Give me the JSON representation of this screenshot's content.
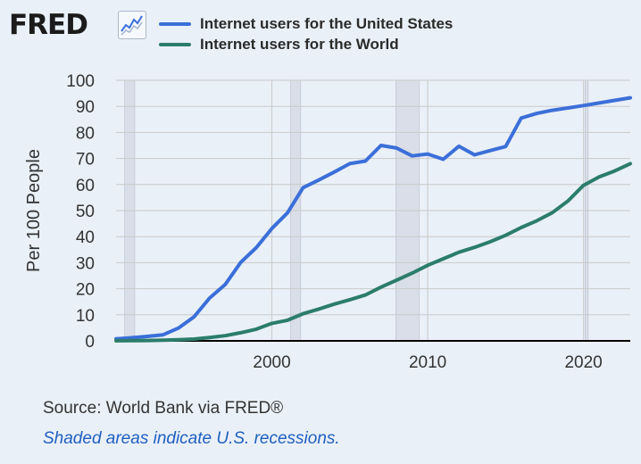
{
  "header": {
    "logo_text": "FRED",
    "logo_icon": "line-chart-icon"
  },
  "colors": {
    "us": "#3b6fd9",
    "world": "#2b7d6b",
    "recession": "#d9dee8",
    "grid": "#c9c9c9",
    "axis": "#000000"
  },
  "chart_data": {
    "type": "line",
    "title": "",
    "xlabel": "",
    "ylabel": "Per 100 People",
    "xlim": [
      1990,
      2023
    ],
    "ylim": [
      0,
      100
    ],
    "yticks": [
      0,
      10,
      20,
      30,
      40,
      50,
      60,
      70,
      80,
      90,
      100
    ],
    "xticks": [
      2000,
      2010,
      2020
    ],
    "recessions": [
      [
        1990.55,
        1991.2
      ],
      [
        2001.2,
        2001.85
      ],
      [
        2007.95,
        2009.45
      ],
      [
        2020.1,
        2020.3
      ]
    ],
    "legend_position": "top",
    "series": [
      {
        "name": "Internet users for the United States",
        "color": "#3b6fd9",
        "x": [
          1990,
          1991,
          1992,
          1993,
          1994,
          1995,
          1996,
          1997,
          1998,
          1999,
          2000,
          2001,
          2002,
          2003,
          2004,
          2005,
          2006,
          2007,
          2008,
          2009,
          2010,
          2011,
          2012,
          2013,
          2014,
          2015,
          2016,
          2017,
          2018,
          2019,
          2020,
          2021,
          2022,
          2023
        ],
        "values": [
          0.8,
          1.2,
          1.7,
          2.3,
          4.9,
          9.2,
          16.4,
          21.6,
          30.1,
          35.8,
          43.1,
          49.1,
          58.8,
          61.7,
          64.8,
          68.0,
          69.0,
          75.0,
          74.0,
          71.0,
          71.7,
          69.7,
          74.7,
          71.4,
          73.0,
          74.6,
          85.5,
          87.3,
          88.5,
          89.4,
          90.3,
          91.3,
          92.3,
          93.3
        ]
      },
      {
        "name": "Internet users for the World",
        "color": "#2b7d6b",
        "x": [
          1990,
          1991,
          1992,
          1993,
          1994,
          1995,
          1996,
          1997,
          1998,
          1999,
          2000,
          2001,
          2002,
          2003,
          2004,
          2005,
          2006,
          2007,
          2008,
          2009,
          2010,
          2011,
          2012,
          2013,
          2014,
          2015,
          2016,
          2017,
          2018,
          2019,
          2020,
          2021,
          2022,
          2023
        ],
        "values": [
          0.05,
          0.08,
          0.12,
          0.25,
          0.4,
          0.7,
          1.3,
          2.0,
          3.1,
          4.5,
          6.7,
          7.9,
          10.4,
          12.2,
          14.1,
          15.8,
          17.6,
          20.6,
          23.3,
          26.0,
          29.0,
          31.5,
          34.0,
          35.9,
          38.0,
          40.5,
          43.5,
          46.1,
          49.2,
          53.7,
          59.7,
          62.9,
          65.2,
          68.0
        ]
      }
    ]
  },
  "footer": {
    "source": "Source: World Bank via FRED®",
    "note": "Shaded areas indicate U.S. recessions."
  }
}
